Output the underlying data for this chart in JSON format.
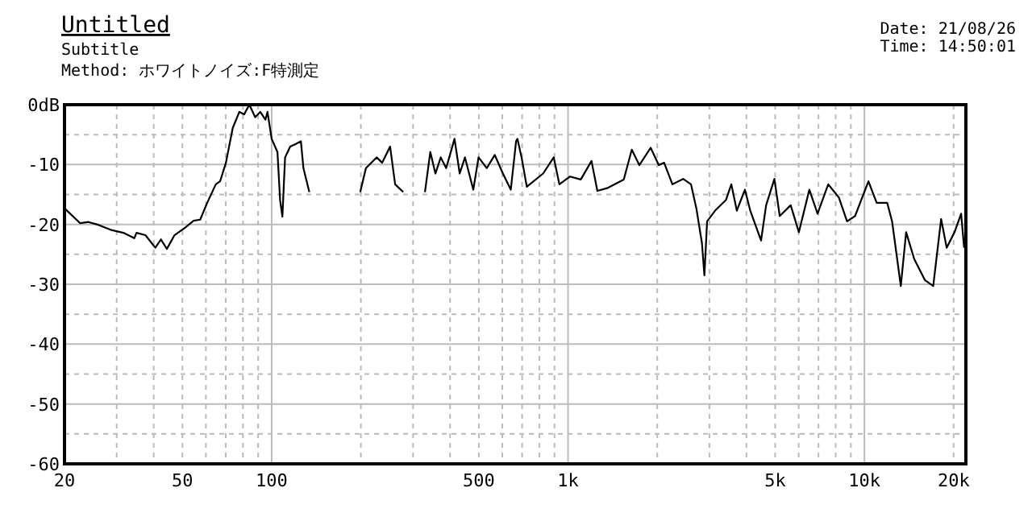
{
  "chart_data": {
    "type": "line",
    "title": "Untitled",
    "subtitle": "Subtitle",
    "annotations": [
      "Method:  ホワイトノイズ:F特測定",
      "Date: 21/08/26",
      "Time: 14:50:01"
    ],
    "log": "x",
    "grid": true,
    "line_style": "solid",
    "marker": "none",
    "xlim": [
      20,
      22000
    ],
    "xticks": [
      20,
      {
        "value": 30,
        "label": null
      },
      {
        "value": 40,
        "label": null
      },
      50,
      {
        "value": 60,
        "label": null
      },
      {
        "value": 70,
        "label": null
      },
      {
        "value": 80,
        "label": null
      },
      {
        "value": 90,
        "label": null
      },
      100,
      {
        "value": 200,
        "label": null
      },
      {
        "value": 300,
        "label": null
      },
      {
        "value": 400,
        "label": null
      },
      500,
      {
        "value": 600,
        "label": null
      },
      {
        "value": 700,
        "label": null
      },
      {
        "value": 800,
        "label": null
      },
      {
        "value": 900,
        "label": null
      },
      {
        "value": 1000,
        "label": "1k"
      },
      {
        "value": 2000,
        "label": null
      },
      {
        "value": 3000,
        "label": null
      },
      {
        "value": 4000,
        "label": null
      },
      {
        "value": 5000,
        "label": "5k"
      },
      {
        "value": 6000,
        "label": null
      },
      {
        "value": 7000,
        "label": null
      },
      {
        "value": 8000,
        "label": null
      },
      {
        "value": 9000,
        "label": null
      },
      {
        "value": 10000,
        "label": "10k"
      },
      {
        "value": 20000,
        "label": "20k"
      }
    ],
    "ylim": [
      -60,
      0
    ],
    "yticks": [
      {
        "value": 0,
        "label": "0dB"
      },
      {
        "value": -5,
        "label": null
      },
      -10,
      {
        "value": -15,
        "label": null
      },
      -20,
      {
        "value": -25,
        "label": null
      },
      -30,
      {
        "value": -35,
        "label": null
      },
      -40,
      {
        "value": -45,
        "label": null
      },
      -50,
      {
        "value": -55,
        "label": null
      },
      -60
    ],
    "series": [
      {
        "color": "#000000",
        "x": [
          20,
          22.6,
          24.1,
          26.1,
          28.6,
          31.6,
          34.4,
          35.0,
          37.5,
          40.5,
          42.3,
          44.3,
          47.0,
          51.2,
          54.5,
          57.4,
          60.6,
          64.8,
          67.0,
          70.1,
          73.9,
          77.8,
          80.8,
          84.1,
          88.0,
          91.5,
          95.3,
          96.8,
          100,
          104.6,
          106.8,
          108.7,
          111,
          115.5,
          120.4,
          125.5,
          128,
          134,
          160,
          199,
          208,
          226,
          236,
          251,
          261,
          278,
          300,
          329,
          343,
          357,
          372,
          388,
          414,
          431,
          449,
          479,
          499,
          532,
          566,
          603,
          641,
          668,
          675,
          697,
          726,
          824,
          895,
          935,
          1016,
          1104,
          1200,
          1256,
          1362,
          1542,
          1641,
          1740,
          1900,
          2024,
          2110,
          2250,
          2445,
          2600,
          2712,
          2830,
          2885,
          2946,
          3135,
          3412,
          3557,
          3711,
          3952,
          4120,
          4480,
          4660,
          4970,
          5180,
          5640,
          6010,
          6520,
          6950,
          7550,
          8200,
          8740,
          9300,
          10320,
          11000,
          11940,
          12400,
          13270,
          13830,
          14730,
          16000,
          17070,
          18150,
          18950,
          20140,
          21200,
          21700
        ],
        "values": [
          -17.3,
          -19.8,
          -19.6,
          -20.1,
          -20.9,
          -21.4,
          -22.3,
          -21.4,
          -21.8,
          -23.9,
          -22.5,
          -24.1,
          -21.8,
          -20.5,
          -19.4,
          -19.2,
          -16.4,
          -13.3,
          -12.8,
          -9.7,
          -3.9,
          -1.2,
          -1.6,
          0,
          -2.1,
          -1.2,
          -2.5,
          -1.2,
          -5.7,
          -7.9,
          -16,
          -18.7,
          -8.8,
          -7,
          -6.6,
          -6.1,
          -10.6,
          -14.6,
          null,
          -14.6,
          -10.6,
          -8.8,
          -9.7,
          -7,
          -13.3,
          -14.6,
          null,
          -14.6,
          -7.9,
          -11.5,
          -8.8,
          -10.6,
          -5.7,
          -11.5,
          -8.8,
          -14.2,
          -8.8,
          -10.6,
          -8.4,
          -11.5,
          -14.2,
          -6.1,
          -5.7,
          -8.8,
          -13.7,
          -11.5,
          -8.8,
          -13.3,
          -12,
          -12.5,
          -9.4,
          -14.4,
          -13.9,
          -12.5,
          -7.5,
          -10.1,
          -7.2,
          -10.1,
          -9.7,
          -13.3,
          -12.4,
          -13.3,
          -17.4,
          -23.1,
          -28.5,
          -19.5,
          -17.7,
          -15.9,
          -13.3,
          -17.7,
          -14.2,
          -17.7,
          -22.7,
          -16.8,
          -12.4,
          -18.6,
          -16.8,
          -21.3,
          -14.2,
          -18.2,
          -13.3,
          -15.5,
          -19.5,
          -18.6,
          -12.8,
          -16.4,
          -16.4,
          -19.5,
          -30.3,
          -21.3,
          -25.8,
          -29.3,
          -30.3,
          -19.1,
          -23.9,
          -21.3,
          -18.2,
          -23.9
        ]
      }
    ]
  }
}
